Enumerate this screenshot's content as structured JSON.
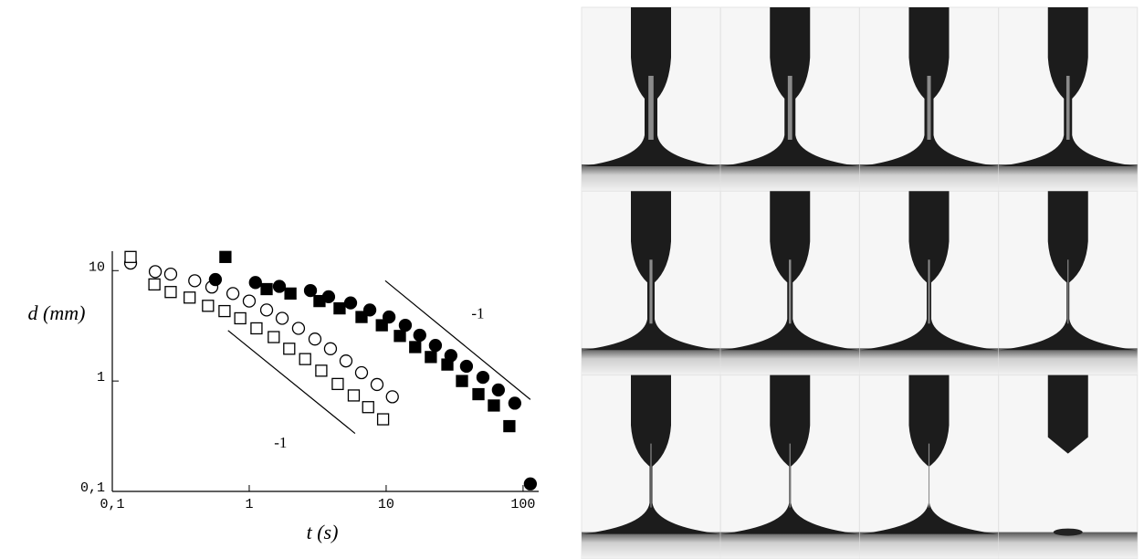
{
  "chart_data": {
    "type": "scatter",
    "xlabel": "t (s)",
    "ylabel": "d (mm)",
    "log_x": true,
    "log_y": true,
    "xlim": [
      0.1,
      130
    ],
    "ylim": [
      0.1,
      15
    ],
    "xticks": [
      {
        "value": 0.1,
        "label": "0,1"
      },
      1,
      10,
      100
    ],
    "yticks": [
      {
        "value": 0.1,
        "label": "0,1"
      },
      1,
      10
    ],
    "series": [
      {
        "marker": "circle",
        "filled": false,
        "color": "#000000",
        "x": [
          0.136,
          0.206,
          0.267,
          0.4,
          0.533,
          0.76,
          1.0,
          1.34,
          1.74,
          2.29,
          3.02,
          3.92,
          5.09,
          6.61,
          8.58,
          11.1
        ],
        "values": [
          11.7,
          9.8,
          9.3,
          8.1,
          7.1,
          6.2,
          5.3,
          4.4,
          3.7,
          3.0,
          2.4,
          1.96,
          1.52,
          1.19,
          0.93,
          0.72
        ]
      },
      {
        "marker": "square",
        "filled": false,
        "color": "#000000",
        "x": [
          0.136,
          0.203,
          0.267,
          0.367,
          0.5,
          0.66,
          0.86,
          1.13,
          1.51,
          1.96,
          2.56,
          3.36,
          4.43,
          5.8,
          7.39,
          9.5
        ],
        "values": [
          13.3,
          7.5,
          6.4,
          5.7,
          4.8,
          4.3,
          3.7,
          3.0,
          2.5,
          1.96,
          1.58,
          1.24,
          0.94,
          0.74,
          0.58,
          0.45
        ]
      },
      {
        "marker": "circle",
        "filled": true,
        "color": "#000000",
        "x": [
          0.566,
          1.11,
          1.66,
          2.8,
          3.8,
          5.5,
          7.6,
          10.5,
          13.8,
          17.6,
          22.9,
          29.7,
          38.6,
          50.9,
          66,
          87,
          113
        ],
        "values": [
          8.3,
          7.8,
          7.2,
          6.6,
          5.8,
          5.1,
          4.4,
          3.8,
          3.2,
          2.6,
          2.1,
          1.7,
          1.36,
          1.08,
          0.83,
          0.63,
          0.117
        ]
      },
      {
        "marker": "square",
        "filled": true,
        "color": "#000000",
        "x": [
          0.67,
          1.34,
          2.0,
          3.26,
          4.57,
          6.61,
          9.3,
          12.6,
          16.3,
          21.2,
          28,
          35.8,
          47.2,
          61.2,
          79.4
        ],
        "values": [
          13.3,
          6.8,
          6.2,
          5.3,
          4.55,
          3.8,
          3.2,
          2.56,
          2.03,
          1.65,
          1.41,
          1.0,
          0.76,
          0.6,
          0.39
        ]
      }
    ],
    "reference_lines": [
      {
        "label": "-1",
        "x": [
          0.7,
          5.93
        ],
        "y": [
          2.87,
          0.335
        ]
      },
      {
        "label": "-1",
        "x": [
          9.85,
          113
        ],
        "y": [
          8.1,
          0.68
        ]
      }
    ]
  }
}
